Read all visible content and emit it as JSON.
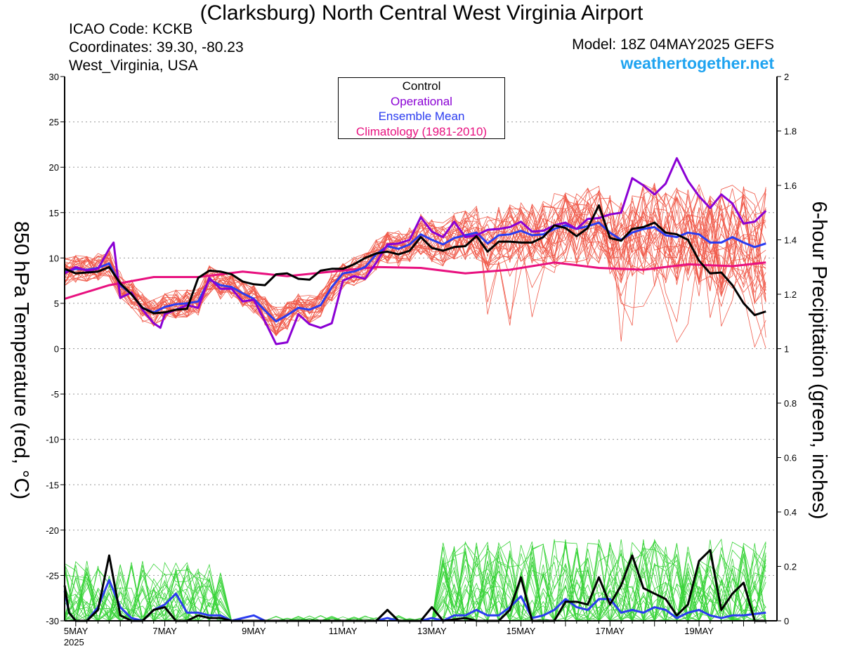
{
  "header": {
    "title": "(Clarksburg) North Central West Virginia Airport",
    "icao": "ICAO Code: KCKB",
    "coordinates": "Coordinates: 39.30, -80.23",
    "region": "West_Virginia, USA",
    "model": "Model: 18Z 04MAY2025 GEFS",
    "brand": "weathertogether.net",
    "brand_color": "#1ea3f0"
  },
  "chart_data": {
    "type": "line",
    "x_unit": "day of May 2025 (fractional)",
    "xlim": [
      4.75,
      20.75
    ],
    "x_ticks": [
      {
        "value": 5,
        "label": "5MAY",
        "sublabel": "2025"
      },
      {
        "value": 7,
        "label": "7MAY"
      },
      {
        "value": 9,
        "label": "9MAY"
      },
      {
        "value": 11,
        "label": "11MAY"
      },
      {
        "value": 13,
        "label": "13MAY"
      },
      {
        "value": 15,
        "label": "15MAY"
      },
      {
        "value": 17,
        "label": "17MAY"
      },
      {
        "value": 19,
        "label": "19MAY"
      }
    ],
    "y_left": {
      "label": "850 hPa Temperature (red, °C)",
      "lim": [
        -30,
        30
      ],
      "ticks": [
        30,
        25,
        20,
        15,
        10,
        5,
        0,
        -5,
        -10,
        -15,
        -20,
        -25,
        -30
      ]
    },
    "y_right": {
      "label": "6-hour Precipitation (green, inches)",
      "lim": [
        0,
        2
      ],
      "ticks": [
        "2",
        "1.8",
        "1.6",
        "1.4",
        "1.2",
        "1",
        "0.8",
        "0.6",
        "0.4",
        "0.2",
        "0"
      ]
    },
    "grid": "dotted horizontal",
    "legend": {
      "placement": "top-center",
      "entries": [
        {
          "label": "Control",
          "color": "#000000"
        },
        {
          "label": "Operational",
          "color": "#8a00d4"
        },
        {
          "label": "Ensemble Mean",
          "color": "#2a3bf0"
        },
        {
          "label": "Climatology (1981-2010)",
          "color": "#e8117f"
        }
      ]
    },
    "colors": {
      "members_temp": "#f05a4a",
      "members_precip": "#3ad43a",
      "control": "#000000",
      "operational": "#8a00d4",
      "mean": "#2a3bf0",
      "climatology": "#e8117f"
    },
    "temperature_series": {
      "control": [
        [
          4.75,
          8.8
        ],
        [
          5.0,
          8.3
        ],
        [
          5.25,
          8.4
        ],
        [
          5.5,
          8.5
        ],
        [
          5.75,
          9.0
        ],
        [
          6.0,
          7.2
        ],
        [
          6.25,
          6.0
        ],
        [
          6.5,
          4.5
        ],
        [
          6.75,
          3.9
        ],
        [
          7.0,
          4.0
        ],
        [
          7.25,
          4.3
        ],
        [
          7.5,
          4.4
        ],
        [
          7.75,
          7.8
        ],
        [
          8.0,
          8.6
        ],
        [
          8.25,
          8.5
        ],
        [
          8.5,
          8.2
        ],
        [
          8.75,
          7.4
        ],
        [
          9.0,
          7.1
        ],
        [
          9.25,
          7.0
        ],
        [
          9.5,
          8.2
        ],
        [
          9.75,
          8.3
        ],
        [
          10.0,
          7.7
        ],
        [
          10.25,
          7.6
        ],
        [
          10.5,
          8.6
        ],
        [
          10.75,
          8.8
        ],
        [
          11.0,
          8.8
        ],
        [
          11.25,
          9.3
        ],
        [
          11.5,
          10.0
        ],
        [
          11.75,
          10.5
        ],
        [
          12.0,
          10.7
        ],
        [
          12.25,
          10.4
        ],
        [
          12.5,
          10.8
        ],
        [
          12.75,
          12.3
        ],
        [
          13.0,
          11.1
        ],
        [
          13.25,
          10.8
        ],
        [
          13.5,
          11.2
        ],
        [
          13.75,
          11.3
        ],
        [
          14.0,
          12.4
        ],
        [
          14.25,
          10.7
        ],
        [
          14.5,
          11.8
        ],
        [
          14.75,
          11.8
        ],
        [
          15.0,
          11.7
        ],
        [
          15.25,
          11.7
        ],
        [
          15.5,
          12.3
        ],
        [
          15.75,
          13.6
        ],
        [
          16.0,
          13.3
        ],
        [
          16.25,
          12.4
        ],
        [
          16.5,
          13.3
        ],
        [
          16.75,
          15.8
        ],
        [
          17.0,
          12.2
        ],
        [
          17.25,
          11.9
        ],
        [
          17.5,
          13.2
        ],
        [
          17.75,
          13.4
        ],
        [
          18.0,
          13.9
        ],
        [
          18.25,
          12.8
        ],
        [
          18.5,
          12.6
        ],
        [
          18.75,
          12.0
        ],
        [
          19.0,
          9.7
        ],
        [
          19.25,
          8.3
        ],
        [
          19.5,
          8.4
        ],
        [
          19.75,
          7.0
        ],
        [
          20.0,
          5.0
        ],
        [
          20.25,
          3.7
        ],
        [
          20.5,
          4.1
        ]
      ],
      "operational": [
        [
          4.75,
          8.3
        ],
        [
          5.0,
          9.0
        ],
        [
          5.25,
          8.6
        ],
        [
          5.5,
          8.8
        ],
        [
          5.75,
          11.0
        ],
        [
          5.85,
          11.7
        ],
        [
          6.0,
          5.6
        ],
        [
          6.25,
          6.2
        ],
        [
          6.5,
          4.3
        ],
        [
          6.75,
          2.8
        ],
        [
          6.9,
          2.3
        ],
        [
          7.0,
          3.8
        ],
        [
          7.25,
          4.3
        ],
        [
          7.5,
          4.8
        ],
        [
          7.75,
          4.5
        ],
        [
          8.0,
          7.8
        ],
        [
          8.25,
          6.6
        ],
        [
          8.5,
          6.6
        ],
        [
          8.75,
          5.2
        ],
        [
          9.0,
          5.4
        ],
        [
          9.25,
          3.0
        ],
        [
          9.5,
          0.5
        ],
        [
          9.75,
          0.7
        ],
        [
          10.0,
          3.8
        ],
        [
          10.25,
          2.7
        ],
        [
          10.5,
          2.3
        ],
        [
          10.75,
          2.8
        ],
        [
          11.0,
          7.5
        ],
        [
          11.25,
          8.0
        ],
        [
          11.5,
          7.7
        ],
        [
          11.75,
          9.5
        ],
        [
          12.0,
          11.5
        ],
        [
          12.25,
          11.6
        ],
        [
          12.5,
          12.0
        ],
        [
          12.75,
          14.5
        ],
        [
          13.0,
          12.9
        ],
        [
          13.25,
          12.3
        ],
        [
          13.5,
          14.0
        ],
        [
          13.75,
          12.3
        ],
        [
          14.0,
          12.5
        ],
        [
          14.25,
          13.1
        ],
        [
          14.5,
          13.2
        ],
        [
          14.75,
          13.4
        ],
        [
          15.0,
          14.0
        ],
        [
          15.25,
          12.9
        ],
        [
          15.5,
          13.0
        ],
        [
          15.75,
          13.6
        ],
        [
          16.0,
          13.9
        ],
        [
          16.25,
          13.2
        ],
        [
          16.5,
          14.3
        ],
        [
          16.75,
          14.4
        ],
        [
          17.0,
          14.8
        ],
        [
          17.25,
          15.0
        ],
        [
          17.5,
          18.8
        ],
        [
          17.75,
          18.0
        ],
        [
          18.0,
          17.0
        ],
        [
          18.25,
          18.2
        ],
        [
          18.5,
          21.0
        ],
        [
          18.75,
          18.5
        ],
        [
          19.0,
          16.8
        ],
        [
          19.25,
          15.5
        ],
        [
          19.5,
          17.0
        ],
        [
          19.75,
          16.0
        ],
        [
          20.0,
          13.8
        ],
        [
          20.25,
          14.0
        ],
        [
          20.5,
          15.2
        ]
      ],
      "mean": [
        [
          4.75,
          8.5
        ],
        [
          5.0,
          8.8
        ],
        [
          5.25,
          8.7
        ],
        [
          5.5,
          8.9
        ],
        [
          5.75,
          9.4
        ],
        [
          6.0,
          7.0
        ],
        [
          6.25,
          6.0
        ],
        [
          6.5,
          4.5
        ],
        [
          6.75,
          4.0
        ],
        [
          7.0,
          4.6
        ],
        [
          7.25,
          4.9
        ],
        [
          7.5,
          5.0
        ],
        [
          7.75,
          5.2
        ],
        [
          8.0,
          7.6
        ],
        [
          8.25,
          7.0
        ],
        [
          8.5,
          6.8
        ],
        [
          8.75,
          6.1
        ],
        [
          9.0,
          5.5
        ],
        [
          9.25,
          4.2
        ],
        [
          9.5,
          3.0
        ],
        [
          9.75,
          3.7
        ],
        [
          10.0,
          4.5
        ],
        [
          10.25,
          4.3
        ],
        [
          10.5,
          4.8
        ],
        [
          10.75,
          6.8
        ],
        [
          11.0,
          8.3
        ],
        [
          11.25,
          8.5
        ],
        [
          11.5,
          9.0
        ],
        [
          11.75,
          10.4
        ],
        [
          12.0,
          11.3
        ],
        [
          12.25,
          11.0
        ],
        [
          12.5,
          11.5
        ],
        [
          12.75,
          12.6
        ],
        [
          13.0,
          12.0
        ],
        [
          13.25,
          11.5
        ],
        [
          13.5,
          12.2
        ],
        [
          13.75,
          12.5
        ],
        [
          14.0,
          12.8
        ],
        [
          14.25,
          11.6
        ],
        [
          14.5,
          12.5
        ],
        [
          14.75,
          12.6
        ],
        [
          15.0,
          13.0
        ],
        [
          15.25,
          12.5
        ],
        [
          15.5,
          12.6
        ],
        [
          15.75,
          13.2
        ],
        [
          16.0,
          13.6
        ],
        [
          16.25,
          13.2
        ],
        [
          16.5,
          13.5
        ],
        [
          16.75,
          13.9
        ],
        [
          17.0,
          12.8
        ],
        [
          17.25,
          12.0
        ],
        [
          17.5,
          12.8
        ],
        [
          17.75,
          13.2
        ],
        [
          18.0,
          13.4
        ],
        [
          18.25,
          12.5
        ],
        [
          18.5,
          12.3
        ],
        [
          18.75,
          12.8
        ],
        [
          19.0,
          12.6
        ],
        [
          19.25,
          11.7
        ],
        [
          19.5,
          11.7
        ],
        [
          19.75,
          12.3
        ],
        [
          20.0,
          11.7
        ],
        [
          20.25,
          11.2
        ],
        [
          20.5,
          11.6
        ]
      ],
      "climatology": [
        [
          4.75,
          5.5
        ],
        [
          5.75,
          7.0
        ],
        [
          6.75,
          7.9
        ],
        [
          7.75,
          7.9
        ],
        [
          8.75,
          8.5
        ],
        [
          9.75,
          8.0
        ],
        [
          10.75,
          8.5
        ],
        [
          11.75,
          9.0
        ],
        [
          12.75,
          8.9
        ],
        [
          13.75,
          8.3
        ],
        [
          14.75,
          8.7
        ],
        [
          15.75,
          9.5
        ],
        [
          16.75,
          8.9
        ],
        [
          17.75,
          8.7
        ],
        [
          18.75,
          9.3
        ],
        [
          19.75,
          9.1
        ],
        [
          20.5,
          9.5
        ]
      ]
    },
    "temperature_member_count": 30,
    "precipitation_series": {
      "control": [
        [
          4.75,
          0.13
        ],
        [
          4.85,
          0.03
        ],
        [
          5.0,
          0.0
        ],
        [
          5.25,
          0.0
        ],
        [
          5.5,
          0.04
        ],
        [
          5.75,
          0.24
        ],
        [
          6.0,
          0.02
        ],
        [
          6.25,
          0.0
        ],
        [
          6.5,
          0.0
        ],
        [
          6.75,
          0.04
        ],
        [
          7.0,
          0.05
        ],
        [
          7.25,
          0.0
        ],
        [
          7.5,
          0.0
        ],
        [
          7.75,
          0.02
        ],
        [
          8.0,
          0.01
        ],
        [
          8.25,
          0.01
        ],
        [
          8.5,
          0.0
        ],
        [
          9.0,
          0.0
        ],
        [
          10.0,
          0.0
        ],
        [
          11.0,
          0.0
        ],
        [
          11.75,
          0.0
        ],
        [
          12.0,
          0.04
        ],
        [
          12.25,
          0.0
        ],
        [
          12.75,
          0.0
        ],
        [
          13.0,
          0.05
        ],
        [
          13.25,
          0.0
        ],
        [
          13.75,
          0.01
        ],
        [
          14.0,
          0.0
        ],
        [
          14.5,
          0.0
        ],
        [
          14.75,
          0.04
        ],
        [
          15.0,
          0.16
        ],
        [
          15.25,
          0.0
        ],
        [
          15.75,
          0.0
        ],
        [
          16.0,
          0.07
        ],
        [
          16.25,
          0.07
        ],
        [
          16.5,
          0.06
        ],
        [
          16.75,
          0.16
        ],
        [
          17.0,
          0.06
        ],
        [
          17.25,
          0.13
        ],
        [
          17.5,
          0.24
        ],
        [
          17.75,
          0.12
        ],
        [
          18.0,
          0.1
        ],
        [
          18.25,
          0.08
        ],
        [
          18.5,
          0.02
        ],
        [
          18.75,
          0.06
        ],
        [
          19.0,
          0.22
        ],
        [
          19.25,
          0.26
        ],
        [
          19.5,
          0.04
        ],
        [
          19.75,
          0.1
        ],
        [
          20.0,
          0.14
        ],
        [
          20.25,
          0.0
        ],
        [
          20.5,
          0.0
        ]
      ],
      "mean": [
        [
          4.75,
          0.11
        ],
        [
          4.85,
          0.03
        ],
        [
          5.0,
          0.0
        ],
        [
          5.25,
          0.0
        ],
        [
          5.5,
          0.05
        ],
        [
          5.75,
          0.15
        ],
        [
          6.0,
          0.05
        ],
        [
          6.25,
          0.01
        ],
        [
          6.5,
          0.0
        ],
        [
          6.75,
          0.04
        ],
        [
          7.0,
          0.06
        ],
        [
          7.25,
          0.1
        ],
        [
          7.5,
          0.03
        ],
        [
          7.75,
          0.03
        ],
        [
          8.0,
          0.02
        ],
        [
          8.25,
          0.02
        ],
        [
          8.5,
          0.0
        ],
        [
          8.75,
          0.01
        ],
        [
          9.0,
          0.02
        ],
        [
          9.25,
          0.0
        ],
        [
          10.0,
          0.0
        ],
        [
          11.0,
          0.0
        ],
        [
          11.75,
          0.0
        ],
        [
          12.0,
          0.01
        ],
        [
          12.25,
          0.0
        ],
        [
          12.75,
          0.0
        ],
        [
          13.0,
          0.01
        ],
        [
          13.25,
          0.0
        ],
        [
          13.5,
          0.02
        ],
        [
          13.75,
          0.02
        ],
        [
          14.0,
          0.04
        ],
        [
          14.25,
          0.02
        ],
        [
          14.5,
          0.02
        ],
        [
          14.75,
          0.05
        ],
        [
          15.0,
          0.09
        ],
        [
          15.25,
          0.01
        ],
        [
          15.5,
          0.02
        ],
        [
          15.75,
          0.04
        ],
        [
          16.0,
          0.08
        ],
        [
          16.25,
          0.05
        ],
        [
          16.5,
          0.04
        ],
        [
          16.75,
          0.08
        ],
        [
          17.0,
          0.08
        ],
        [
          17.25,
          0.03
        ],
        [
          17.5,
          0.04
        ],
        [
          17.75,
          0.03
        ],
        [
          18.0,
          0.05
        ],
        [
          18.25,
          0.04
        ],
        [
          18.5,
          0.01
        ],
        [
          18.75,
          0.03
        ],
        [
          19.0,
          0.04
        ],
        [
          19.25,
          0.02
        ],
        [
          19.5,
          0.01
        ],
        [
          19.75,
          0.02
        ],
        [
          20.0,
          0.02
        ],
        [
          20.25,
          0.025
        ],
        [
          20.5,
          0.03
        ]
      ]
    },
    "precipitation_member_count": 30
  }
}
